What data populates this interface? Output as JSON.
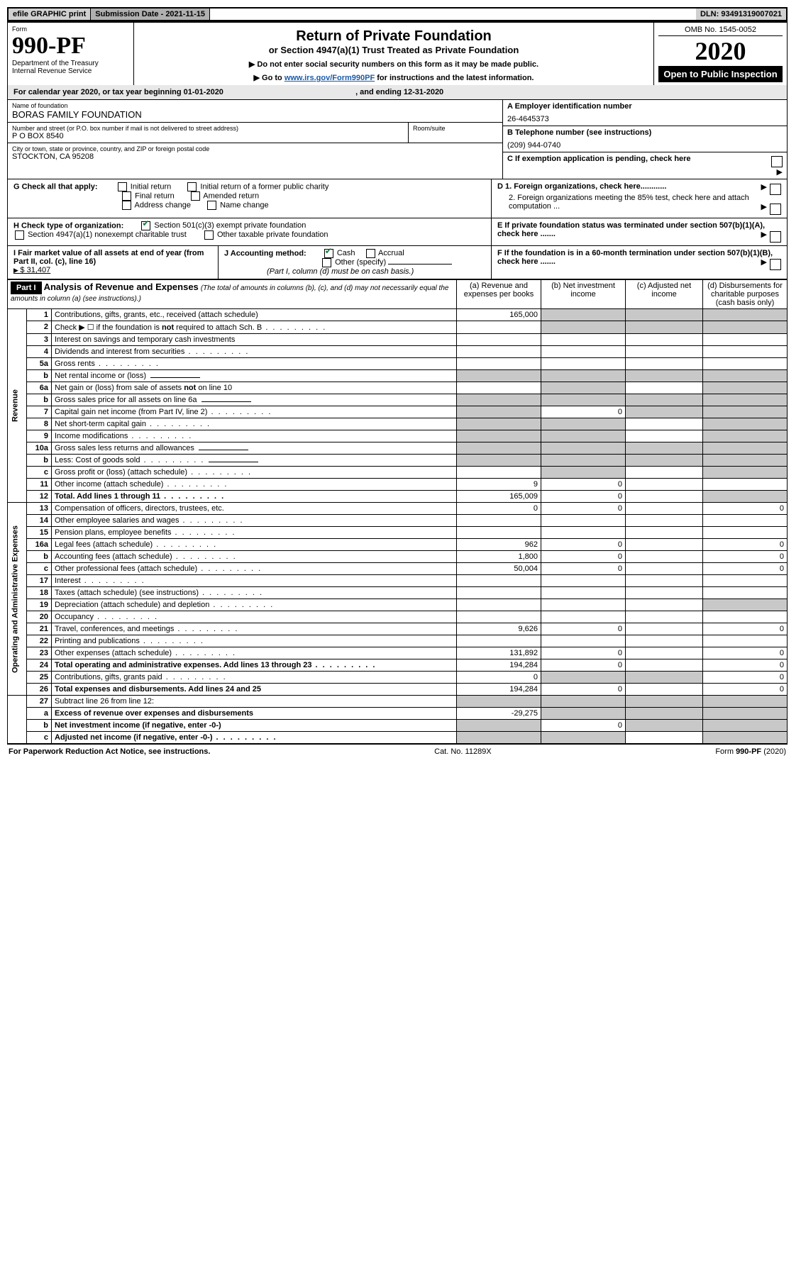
{
  "topbar": {
    "efile": "efile GRAPHIC print",
    "submission_label": "Submission Date - 2021-11-15",
    "dln": "DLN: 93491319007021"
  },
  "header": {
    "form_label": "Form",
    "form_number": "990-PF",
    "dept1": "Department of the Treasury",
    "dept2": "Internal Revenue Service",
    "title_main": "Return of Private Foundation",
    "title_sub": "or Section 4947(a)(1) Trust Treated as Private Foundation",
    "note1": "▶ Do not enter social security numbers on this form as it may be made public.",
    "note2_pre": "▶ Go to ",
    "note2_link": "www.irs.gov/Form990PF",
    "note2_post": " for instructions and the latest information.",
    "omb": "OMB No. 1545-0052",
    "year": "2020",
    "open": "Open to Public Inspection"
  },
  "calyear": {
    "text_pre": "For calendar year 2020, or tax year beginning ",
    "begin": "01-01-2020",
    "text_mid": " , and ending ",
    "end": "12-31-2020"
  },
  "entity": {
    "name_label": "Name of foundation",
    "name": "BORAS FAMILY FOUNDATION",
    "addr_label": "Number and street (or P.O. box number if mail is not delivered to street address)",
    "addr": "P O BOX 8540",
    "room_label": "Room/suite",
    "city_label": "City or town, state or province, country, and ZIP or foreign postal code",
    "city": "STOCKTON, CA  95208",
    "ein_label": "A Employer identification number",
    "ein": "26-4645373",
    "phone_label": "B Telephone number (see instructions)",
    "phone": "(209) 944-0740",
    "c_label": "C If exemption application is pending, check here",
    "d1": "D 1. Foreign organizations, check here............",
    "d2": "2. Foreign organizations meeting the 85% test, check here and attach computation ...",
    "e": "E  If private foundation status was terminated under section 507(b)(1)(A), check here .......",
    "f": "F  If the foundation is in a 60-month termination under section 507(b)(1)(B), check here ......."
  },
  "checks": {
    "g_label": "G Check all that apply:",
    "initial": "Initial return",
    "initial_former": "Initial return of a former public charity",
    "final": "Final return",
    "amended": "Amended return",
    "addr_change": "Address change",
    "name_change": "Name change",
    "h_label": "H Check type of organization:",
    "h1": "Section 501(c)(3) exempt private foundation",
    "h2": "Section 4947(a)(1) nonexempt charitable trust",
    "h3": "Other taxable private foundation",
    "i_label": "I Fair market value of all assets at end of year (from Part II, col. (c), line 16)",
    "i_val": "$  31,407",
    "j_label": "J Accounting method:",
    "j_cash": "Cash",
    "j_accrual": "Accrual",
    "j_other": "Other (specify)",
    "j_note": "(Part I, column (d) must be on cash basis.)"
  },
  "part1": {
    "label": "Part I",
    "title": "Analysis of Revenue and Expenses",
    "title_note": " (The total of amounts in columns (b), (c), and (d) may not necessarily equal the amounts in column (a) (see instructions).)",
    "cols": {
      "a": "(a) Revenue and expenses per books",
      "b": "(b) Net investment income",
      "c": "(c) Adjusted net income",
      "d": "(d) Disbursements for charitable purposes (cash basis only)"
    },
    "sections": {
      "rev": "Revenue",
      "ope": "Operating and Administrative Expenses"
    }
  },
  "rows": [
    {
      "sec": "rev",
      "n": "1",
      "d": "Contributions, gifts, grants, etc., received (attach schedule)",
      "a": "165,000",
      "bGray": true,
      "cGray": true,
      "dGray": true
    },
    {
      "sec": "rev",
      "n": "2",
      "d": "Check ▶ ☐ if the foundation is not required to attach Sch. B",
      "dot": true,
      "bGray": true,
      "cGray": true,
      "dGray": true
    },
    {
      "sec": "rev",
      "n": "3",
      "d": "Interest on savings and temporary cash investments"
    },
    {
      "sec": "rev",
      "n": "4",
      "d": "Dividends and interest from securities",
      "dot": true
    },
    {
      "sec": "rev",
      "n": "5a",
      "d": "Gross rents",
      "dot": true
    },
    {
      "sec": "rev",
      "n": "b",
      "d": "Net rental income or (loss)",
      "input": true,
      "aGray": true,
      "bGray": true,
      "cGray": true,
      "dGray": true
    },
    {
      "sec": "rev",
      "n": "6a",
      "d": "Net gain or (loss) from sale of assets not on line 10",
      "bGray": true,
      "dGray": true
    },
    {
      "sec": "rev",
      "n": "b",
      "d": "Gross sales price for all assets on line 6a",
      "input": true,
      "aGray": true,
      "bGray": true,
      "cGray": true,
      "dGray": true
    },
    {
      "sec": "rev",
      "n": "7",
      "d": "Capital gain net income (from Part IV, line 2)",
      "dot": true,
      "aGray": true,
      "b": "0",
      "cGray": true,
      "dGray": true
    },
    {
      "sec": "rev",
      "n": "8",
      "d": "Net short-term capital gain",
      "dot": true,
      "aGray": true,
      "bGray": true,
      "dGray": true
    },
    {
      "sec": "rev",
      "n": "9",
      "d": "Income modifications",
      "dot": true,
      "aGray": true,
      "bGray": true,
      "dGray": true
    },
    {
      "sec": "rev",
      "n": "10a",
      "d": "Gross sales less returns and allowances",
      "input": true,
      "aGray": true,
      "bGray": true,
      "cGray": true,
      "dGray": true
    },
    {
      "sec": "rev",
      "n": "b",
      "d": "Less: Cost of goods sold",
      "dot": true,
      "input": true,
      "aGray": true,
      "bGray": true,
      "cGray": true,
      "dGray": true
    },
    {
      "sec": "rev",
      "n": "c",
      "d": "Gross profit or (loss) (attach schedule)",
      "dot": true,
      "bGray": true,
      "dGray": true
    },
    {
      "sec": "rev",
      "n": "11",
      "d": "Other income (attach schedule)",
      "dot": true,
      "a": "9",
      "b": "0"
    },
    {
      "sec": "rev",
      "n": "12",
      "d": "Total. Add lines 1 through 11",
      "dot": true,
      "bold": true,
      "a": "165,009",
      "b": "0",
      "dGray": true
    },
    {
      "sec": "ope",
      "n": "13",
      "d": "Compensation of officers, directors, trustees, etc.",
      "a": "0",
      "b": "0",
      "dd": "0"
    },
    {
      "sec": "ope",
      "n": "14",
      "d": "Other employee salaries and wages",
      "dot": true
    },
    {
      "sec": "ope",
      "n": "15",
      "d": "Pension plans, employee benefits",
      "dot": true
    },
    {
      "sec": "ope",
      "n": "16a",
      "d": "Legal fees (attach schedule)",
      "dot": true,
      "a": "962",
      "b": "0",
      "dd": "0"
    },
    {
      "sec": "ope",
      "n": "b",
      "d": "Accounting fees (attach schedule)",
      "dot": true,
      "a": "1,800",
      "b": "0",
      "dd": "0"
    },
    {
      "sec": "ope",
      "n": "c",
      "d": "Other professional fees (attach schedule)",
      "dot": true,
      "a": "50,004",
      "b": "0",
      "dd": "0"
    },
    {
      "sec": "ope",
      "n": "17",
      "d": "Interest",
      "dot": true
    },
    {
      "sec": "ope",
      "n": "18",
      "d": "Taxes (attach schedule) (see instructions)",
      "dot": true
    },
    {
      "sec": "ope",
      "n": "19",
      "d": "Depreciation (attach schedule) and depletion",
      "dot": true,
      "dGray": true
    },
    {
      "sec": "ope",
      "n": "20",
      "d": "Occupancy",
      "dot": true
    },
    {
      "sec": "ope",
      "n": "21",
      "d": "Travel, conferences, and meetings",
      "dot": true,
      "a": "9,626",
      "b": "0",
      "dd": "0"
    },
    {
      "sec": "ope",
      "n": "22",
      "d": "Printing and publications",
      "dot": true
    },
    {
      "sec": "ope",
      "n": "23",
      "d": "Other expenses (attach schedule)",
      "dot": true,
      "a": "131,892",
      "b": "0",
      "dd": "0"
    },
    {
      "sec": "ope",
      "n": "24",
      "d": "Total operating and administrative expenses. Add lines 13 through 23",
      "dot": true,
      "bold": true,
      "a": "194,284",
      "b": "0",
      "dd": "0"
    },
    {
      "sec": "ope",
      "n": "25",
      "d": "Contributions, gifts, grants paid",
      "dot": true,
      "a": "0",
      "bGray": true,
      "cGray": true,
      "dd": "0"
    },
    {
      "sec": "ope",
      "n": "26",
      "d": "Total expenses and disbursements. Add lines 24 and 25",
      "bold": true,
      "a": "194,284",
      "b": "0",
      "dd": "0"
    },
    {
      "sec": "net",
      "n": "27",
      "d": "Subtract line 26 from line 12:",
      "aGray": true,
      "bGray": true,
      "cGray": true,
      "dGray": true
    },
    {
      "sec": "net",
      "n": "a",
      "d": "Excess of revenue over expenses and disbursements",
      "bold": true,
      "a": "-29,275",
      "bGray": true,
      "cGray": true,
      "dGray": true
    },
    {
      "sec": "net",
      "n": "b",
      "d": "Net investment income (if negative, enter -0-)",
      "bold": true,
      "aGray": true,
      "b": "0",
      "cGray": true,
      "dGray": true
    },
    {
      "sec": "net",
      "n": "c",
      "d": "Adjusted net income (if negative, enter -0-)",
      "dot": true,
      "bold": true,
      "aGray": true,
      "bGray": true,
      "dGray": true
    }
  ],
  "footer": {
    "left": "For Paperwork Reduction Act Notice, see instructions.",
    "mid": "Cat. No. 11289X",
    "right": "Form 990-PF (2020)"
  }
}
